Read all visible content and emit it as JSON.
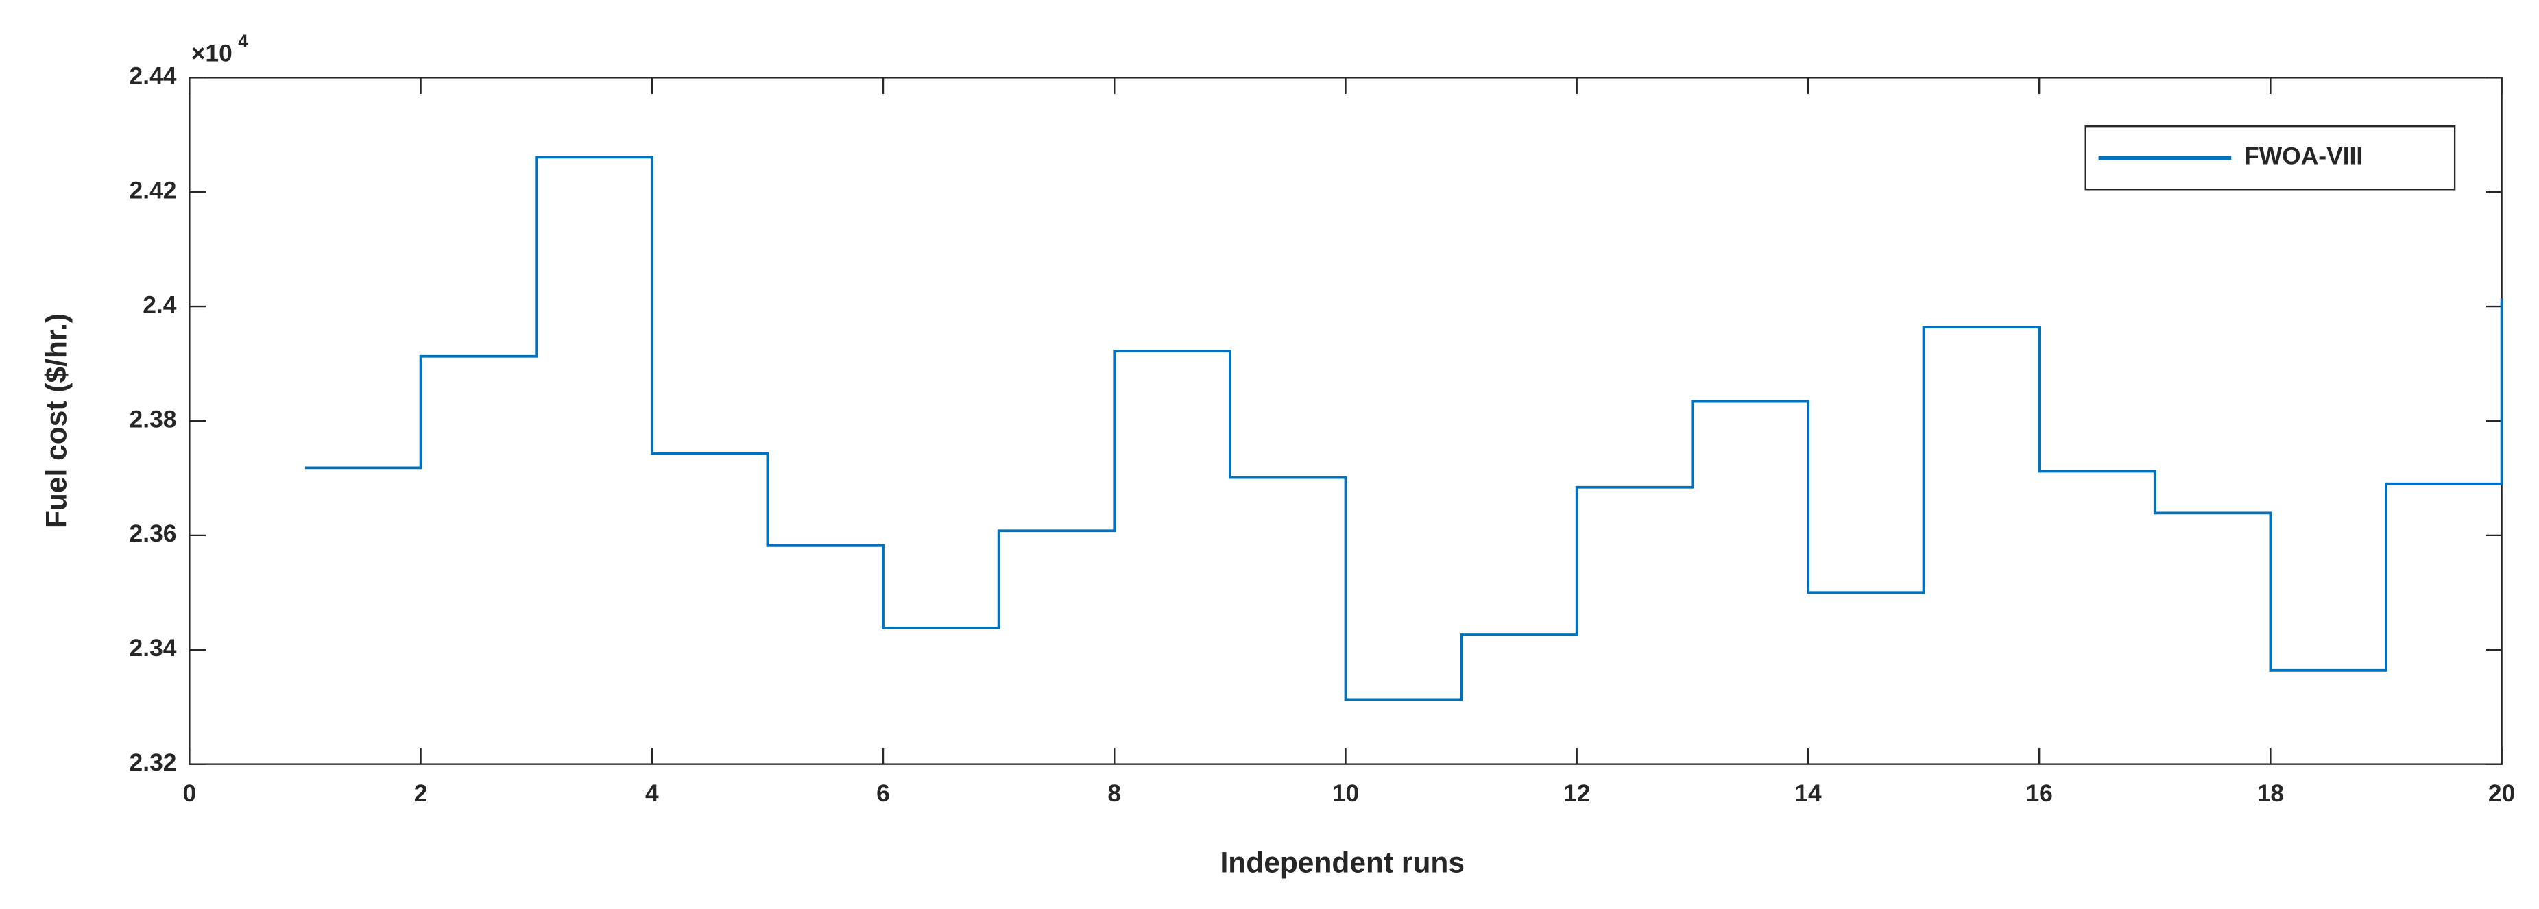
{
  "chart_data": {
    "type": "stairs",
    "x_label": "Independent runs",
    "y_label": "Fuel cost ($/hr.)",
    "y_exponent_label": {
      "base": "×10",
      "power": "4"
    },
    "x": [
      1,
      2,
      3,
      4,
      5,
      6,
      7,
      8,
      9,
      10,
      11,
      12,
      13,
      14,
      15,
      16,
      17,
      18,
      19,
      20
    ],
    "series": [
      {
        "name": "FWOA-VIII",
        "color": "#0072bd",
        "values": [
          2.3718,
          2.3913,
          2.4261,
          2.3743,
          2.3582,
          2.3438,
          2.3608,
          2.3922,
          2.3701,
          2.3313,
          2.3426,
          2.3684,
          2.3834,
          2.35,
          2.3964,
          2.3712,
          2.3639,
          2.3364,
          2.369,
          2.4012
        ]
      }
    ],
    "xlim": [
      0,
      20
    ],
    "xticks": [
      0,
      2,
      4,
      6,
      8,
      10,
      12,
      14,
      16,
      18,
      20
    ],
    "ylim": [
      2.32,
      2.44
    ],
    "yticks": [
      2.32,
      2.34,
      2.36,
      2.38,
      2.4,
      2.42,
      2.44
    ],
    "grid": false,
    "legend_position": "upper-right"
  }
}
